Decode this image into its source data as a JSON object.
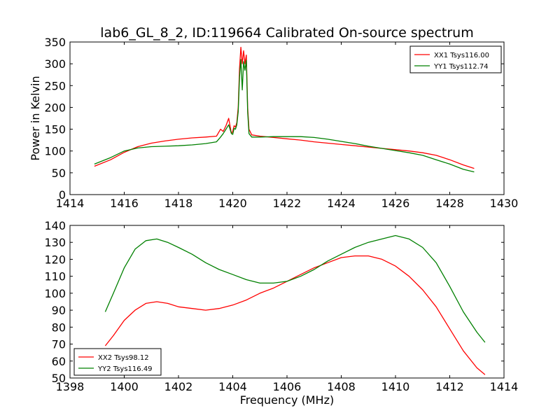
{
  "figure": {
    "title": "lab6_GL_8_2, ID:119664 Calibrated On-source spectrum"
  },
  "chart_data": [
    {
      "type": "line",
      "xlabel": "",
      "ylabel": "Power in Kelvin",
      "xlim": [
        1414,
        1430
      ],
      "ylim": [
        0,
        350
      ],
      "xticks": [
        1414,
        1416,
        1418,
        1420,
        1422,
        1424,
        1426,
        1428,
        1430
      ],
      "yticks": [
        0,
        50,
        100,
        150,
        200,
        250,
        300,
        350
      ],
      "grid": false,
      "legend_position": "top-right",
      "series": [
        {
          "name": "XX1 Tsys116.00",
          "color": "#ff0000",
          "x": [
            1414.9,
            1415.5,
            1416.0,
            1416.5,
            1417.0,
            1417.5,
            1418.0,
            1418.5,
            1419.0,
            1419.4,
            1419.55,
            1419.65,
            1419.75,
            1419.85,
            1419.95,
            1420.0,
            1420.05,
            1420.1,
            1420.15,
            1420.2,
            1420.25,
            1420.3,
            1420.35,
            1420.4,
            1420.45,
            1420.5,
            1420.55,
            1420.6,
            1420.7,
            1421.0,
            1421.5,
            1422.0,
            1422.5,
            1423.0,
            1423.5,
            1424.0,
            1424.5,
            1425.0,
            1425.5,
            1426.0,
            1426.5,
            1427.0,
            1427.5,
            1428.0,
            1428.5,
            1428.9
          ],
          "y": [
            65,
            80,
            97,
            110,
            118,
            123,
            127,
            130,
            132,
            134,
            150,
            145,
            158,
            175,
            140,
            145,
            158,
            155,
            165,
            200,
            290,
            338,
            300,
            330,
            300,
            320,
            200,
            150,
            137,
            134,
            131,
            128,
            125,
            121,
            118,
            115,
            112,
            109,
            106,
            103,
            100,
            96,
            90,
            80,
            68,
            60
          ]
        },
        {
          "name": "YY1 Tsys112.74",
          "color": "#008000",
          "x": [
            1414.9,
            1415.5,
            1416.0,
            1416.5,
            1417.0,
            1417.5,
            1418.0,
            1418.5,
            1419.0,
            1419.4,
            1419.55,
            1419.65,
            1419.75,
            1419.85,
            1419.95,
            1420.0,
            1420.05,
            1420.1,
            1420.15,
            1420.2,
            1420.25,
            1420.3,
            1420.35,
            1420.4,
            1420.45,
            1420.5,
            1420.55,
            1420.6,
            1420.7,
            1421.0,
            1421.5,
            1422.0,
            1422.5,
            1423.0,
            1423.5,
            1424.0,
            1424.5,
            1425.0,
            1425.5,
            1426.0,
            1426.5,
            1427.0,
            1427.5,
            1428.0,
            1428.5,
            1428.9
          ],
          "y": [
            70,
            85,
            100,
            107,
            110,
            111,
            112,
            114,
            117,
            121,
            132,
            140,
            150,
            160,
            140,
            138,
            152,
            150,
            160,
            190,
            270,
            310,
            240,
            305,
            285,
            308,
            190,
            140,
            132,
            132,
            133,
            133,
            133,
            131,
            127,
            122,
            117,
            111,
            106,
            101,
            96,
            90,
            80,
            70,
            58,
            52
          ]
        }
      ]
    },
    {
      "type": "line",
      "xlabel": "Frequency (MHz)",
      "ylabel": "",
      "xlim": [
        1398,
        1414
      ],
      "ylim": [
        50,
        140
      ],
      "xticks": [
        1398,
        1400,
        1402,
        1404,
        1406,
        1408,
        1410,
        1412,
        1414
      ],
      "yticks": [
        50,
        60,
        70,
        80,
        90,
        100,
        110,
        120,
        130,
        140
      ],
      "grid": false,
      "legend_position": "bottom-left",
      "series": [
        {
          "name": "XX2 Tsys98.12",
          "color": "#ff0000",
          "x": [
            1399.3,
            1399.6,
            1400.0,
            1400.4,
            1400.8,
            1401.2,
            1401.6,
            1402.0,
            1402.5,
            1403.0,
            1403.5,
            1404.0,
            1404.5,
            1405.0,
            1405.5,
            1406.0,
            1406.5,
            1407.0,
            1407.5,
            1408.0,
            1408.5,
            1409.0,
            1409.5,
            1410.0,
            1410.5,
            1411.0,
            1411.5,
            1412.0,
            1412.5,
            1413.0,
            1413.3
          ],
          "y": [
            69,
            75,
            84,
            90,
            94,
            95,
            94,
            92,
            91,
            90,
            91,
            93,
            96,
            100,
            103,
            107,
            111,
            115,
            118,
            121,
            122,
            122,
            120,
            116,
            110,
            102,
            92,
            79,
            66,
            56,
            52
          ]
        },
        {
          "name": "YY2 Tsys116.49",
          "color": "#008000",
          "x": [
            1399.3,
            1399.6,
            1400.0,
            1400.4,
            1400.8,
            1401.2,
            1401.6,
            1402.0,
            1402.5,
            1403.0,
            1403.5,
            1404.0,
            1404.5,
            1405.0,
            1405.5,
            1406.0,
            1406.5,
            1407.0,
            1407.5,
            1408.0,
            1408.5,
            1409.0,
            1409.5,
            1410.0,
            1410.5,
            1411.0,
            1411.5,
            1412.0,
            1412.5,
            1413.0,
            1413.3
          ],
          "y": [
            89,
            100,
            115,
            126,
            131,
            132,
            130,
            127,
            123,
            118,
            114,
            111,
            108,
            106,
            106,
            107,
            110,
            114,
            119,
            123,
            127,
            130,
            132,
            134,
            132,
            127,
            118,
            104,
            89,
            77,
            71
          ]
        }
      ]
    }
  ]
}
